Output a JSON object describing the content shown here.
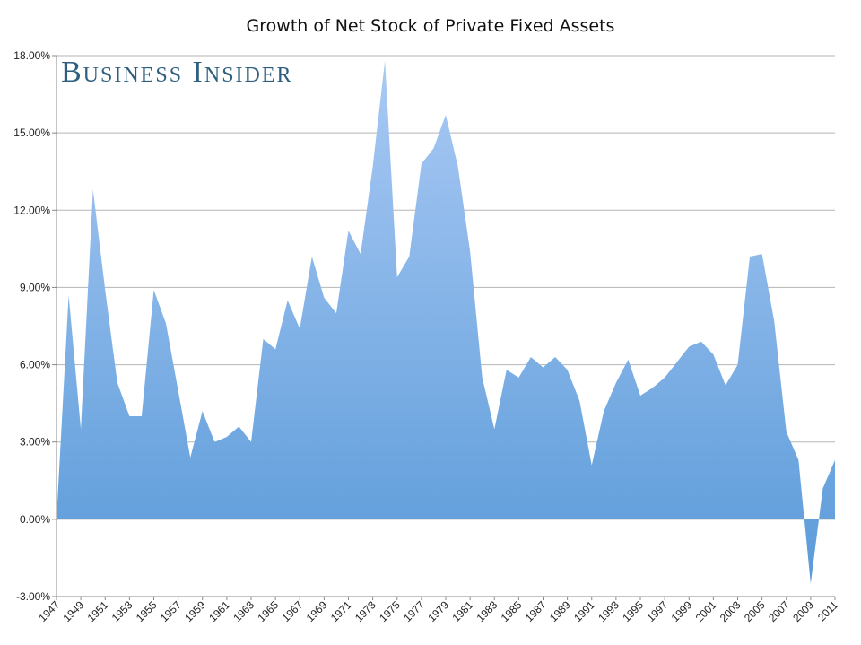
{
  "chart_data": {
    "type": "area",
    "title": "Growth of Net Stock of Private Fixed Assets",
    "watermark": "Business Insider",
    "xlabel": "",
    "ylabel": "",
    "ylim": [
      -3.0,
      18.0
    ],
    "ytick_labels": [
      "-3.00%",
      "0.00%",
      "3.00%",
      "6.00%",
      "9.00%",
      "12.00%",
      "15.00%",
      "18.00%"
    ],
    "ytick_values": [
      -3,
      0,
      3,
      6,
      9,
      12,
      15,
      18
    ],
    "x_tick_labels": [
      "1947",
      "1949",
      "1951",
      "1953",
      "1955",
      "1957",
      "1959",
      "1961",
      "1963",
      "1965",
      "1967",
      "1969",
      "1971",
      "1973",
      "1975",
      "1977",
      "1979",
      "1981",
      "1983",
      "1985",
      "1987",
      "1989",
      "1991",
      "1993",
      "1995",
      "1997",
      "1999",
      "2001",
      "2003",
      "2005",
      "2007",
      "2009",
      "2011"
    ],
    "grid": "horizontal",
    "fill_color_top": "#a9c9f4",
    "fill_color_bottom": "#5b9bd9",
    "x": [
      1947,
      1948,
      1949,
      1950,
      1951,
      1952,
      1953,
      1954,
      1955,
      1956,
      1957,
      1958,
      1959,
      1960,
      1961,
      1962,
      1963,
      1964,
      1965,
      1966,
      1967,
      1968,
      1969,
      1970,
      1971,
      1972,
      1973,
      1974,
      1975,
      1976,
      1977,
      1978,
      1979,
      1980,
      1981,
      1982,
      1983,
      1984,
      1985,
      1986,
      1987,
      1988,
      1989,
      1990,
      1991,
      1992,
      1993,
      1994,
      1995,
      1996,
      1997,
      1998,
      1999,
      2000,
      2001,
      2002,
      2003,
      2004,
      2005,
      2006,
      2007,
      2008,
      2009,
      2010,
      2011
    ],
    "values": [
      0.0,
      8.7,
      3.5,
      12.8,
      8.9,
      5.3,
      4.0,
      4.0,
      8.9,
      7.6,
      5.0,
      2.4,
      4.2,
      3.0,
      3.2,
      3.6,
      3.0,
      7.0,
      6.6,
      8.5,
      7.4,
      10.2,
      8.6,
      8.0,
      11.2,
      10.3,
      13.7,
      17.8,
      9.4,
      10.2,
      13.8,
      14.4,
      15.7,
      13.7,
      10.4,
      5.5,
      3.5,
      5.8,
      5.5,
      6.3,
      5.9,
      6.3,
      5.8,
      4.6,
      2.1,
      4.2,
      5.3,
      6.2,
      4.8,
      5.1,
      5.5,
      6.1,
      6.7,
      6.9,
      6.4,
      5.2,
      6.0,
      10.2,
      10.3,
      7.7,
      3.4,
      2.3,
      -2.5,
      1.2,
      2.3
    ]
  }
}
